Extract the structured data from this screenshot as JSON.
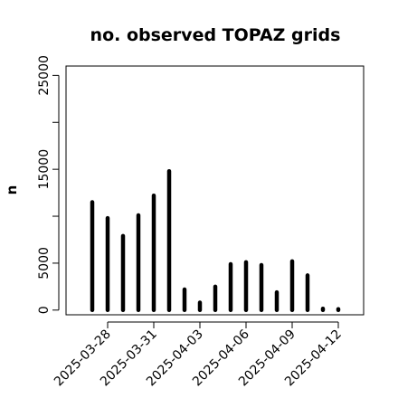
{
  "chart_data": {
    "type": "bar",
    "title": "no. observed TOPAZ grids",
    "ylabel": "n",
    "xlabel": "",
    "ylim": [
      -500,
      26000
    ],
    "yticks": [
      0,
      5000,
      10000,
      15000,
      20000,
      25000
    ],
    "ytick_labels": [
      "0",
      "5000",
      "",
      "15000",
      "",
      "25000"
    ],
    "x": [
      "2025-03-27",
      "2025-03-28",
      "2025-03-29",
      "2025-03-30",
      "2025-03-31",
      "2025-04-01",
      "2025-04-02",
      "2025-04-03",
      "2025-04-04",
      "2025-04-05",
      "2025-04-06",
      "2025-04-07",
      "2025-04-08",
      "2025-04-09",
      "2025-04-10",
      "2025-04-11",
      "2025-04-12"
    ],
    "values": [
      11500,
      9800,
      7900,
      10100,
      12200,
      14800,
      2200,
      800,
      2500,
      4900,
      5100,
      4800,
      1900,
      5200,
      3700,
      150,
      100
    ],
    "xticks": [
      {
        "date": "2025-03-28",
        "label": "2025-03-28",
        "color": "#000000"
      },
      {
        "date": "2025-03-31",
        "label": "2025-03-31",
        "color": "#000000"
      },
      {
        "date": "2025-04-03",
        "label": "2025-04-03",
        "color": "#228B22"
      },
      {
        "date": "2025-04-06",
        "label": "2025-04-06",
        "color": "#000000"
      },
      {
        "date": "2025-04-09",
        "label": "2025-04-09",
        "color": "#000000"
      },
      {
        "date": "2025-04-12",
        "label": "2025-04-12",
        "color": "#000000"
      }
    ],
    "bar_color": "#000000",
    "grid": false
  }
}
